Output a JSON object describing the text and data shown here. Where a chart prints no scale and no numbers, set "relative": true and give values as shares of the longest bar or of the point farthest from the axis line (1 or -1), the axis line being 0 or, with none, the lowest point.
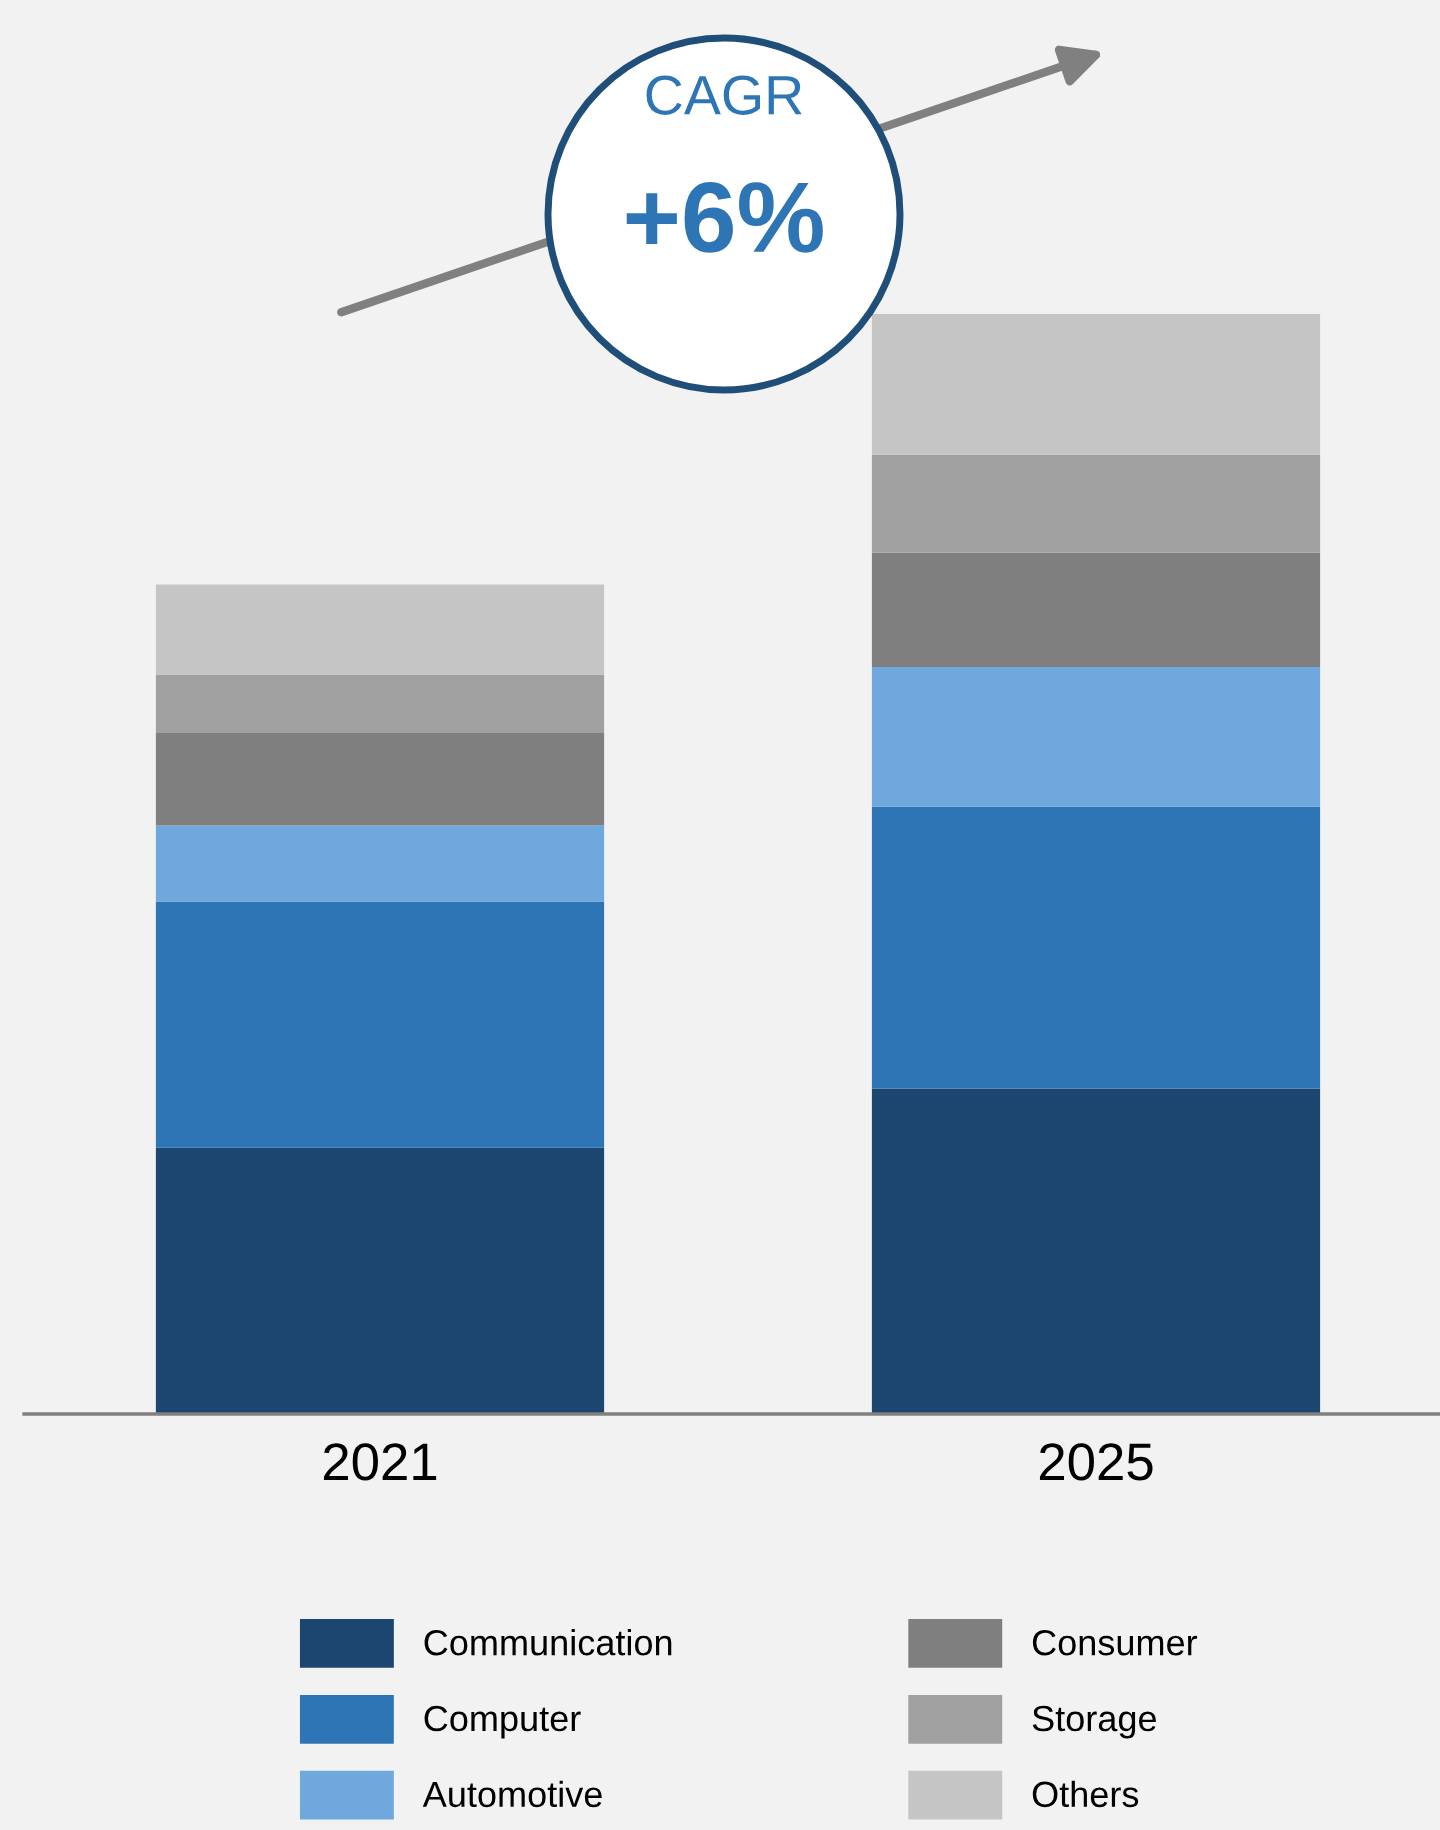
{
  "chart_data": {
    "type": "bar",
    "stacked": true,
    "relative": true,
    "categories": [
      "2021",
      "2025"
    ],
    "series": [
      {
        "name": "Communication",
        "color": "#1c4570",
        "values": [
          0.242,
          0.296
        ]
      },
      {
        "name": "Computer",
        "color": "#2e75b6",
        "values": [
          0.224,
          0.256
        ]
      },
      {
        "name": "Automotive",
        "color": "#6fa8dc",
        "values": [
          0.069,
          0.127
        ]
      },
      {
        "name": "Consumer",
        "color": "#7f7f7f",
        "values": [
          0.084,
          0.104
        ]
      },
      {
        "name": "Storage",
        "color": "#a0a0a0",
        "values": [
          0.053,
          0.089
        ]
      },
      {
        "name": "Others",
        "color": "#c5c5c5",
        "values": [
          0.082,
          0.128
        ]
      }
    ],
    "annotations": [
      "CAGR",
      "+6%"
    ],
    "legend": "bottom",
    "grid": false
  }
}
